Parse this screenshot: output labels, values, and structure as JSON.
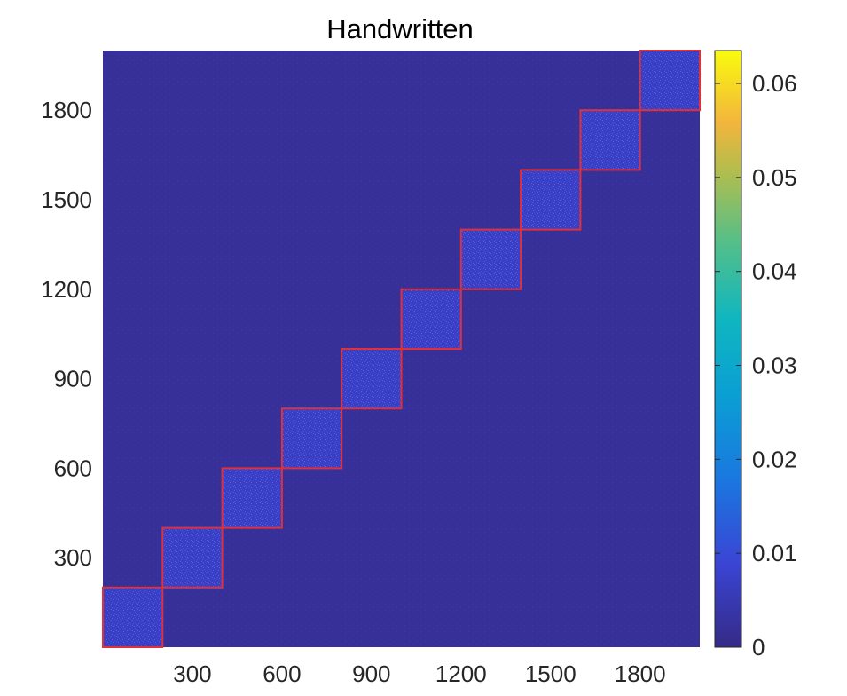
{
  "chart_data": {
    "type": "heatmap",
    "title": "Handwritten",
    "xlabel": "",
    "ylabel": "",
    "xlim": [
      0,
      2000
    ],
    "ylim": [
      0,
      2000
    ],
    "x_ticks": [
      300,
      600,
      900,
      1200,
      1500,
      1800
    ],
    "y_ticks": [
      300,
      600,
      900,
      1200,
      1500,
      1800
    ],
    "y_direction": "normal",
    "colormap": "parula",
    "colorbar": {
      "min": 0,
      "max": 0.0635,
      "ticks": [
        "0",
        "0.01",
        "0.02",
        "0.03",
        "0.04",
        "0.05",
        "0.06"
      ],
      "tick_values": [
        0,
        0.01,
        0.02,
        0.03,
        0.04,
        0.05,
        0.06
      ],
      "position": "right"
    },
    "background_value": 0.002,
    "block_value": 0.007,
    "blocks": [
      {
        "start": 0,
        "end": 200
      },
      {
        "start": 200,
        "end": 400
      },
      {
        "start": 400,
        "end": 600
      },
      {
        "start": 600,
        "end": 800
      },
      {
        "start": 800,
        "end": 1000
      },
      {
        "start": 1000,
        "end": 1200
      },
      {
        "start": 1200,
        "end": 1400
      },
      {
        "start": 1400,
        "end": 1600
      },
      {
        "start": 1600,
        "end": 1800
      },
      {
        "start": 1800,
        "end": 2000
      }
    ],
    "block_outline_color": "#e0303a",
    "grid": false
  }
}
